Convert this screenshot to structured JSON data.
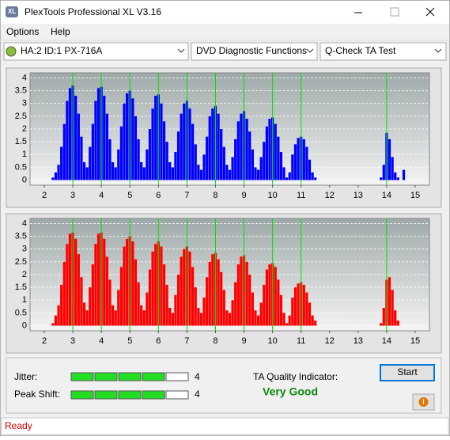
{
  "window": {
    "title": "PlexTools Professional XL V3.16"
  },
  "menu": [
    "Options",
    "Help"
  ],
  "toolbar": {
    "drive": "HA:2 ID:1  PX-716A",
    "function": "DVD Diagnostic Functions",
    "test": "Q-Check TA Test"
  },
  "chart_data": [
    {
      "type": "bar",
      "color": "#0000ff",
      "marker_color": "#00e000",
      "grid": true,
      "xlim": [
        1.5,
        15.5
      ],
      "ylim": [
        -0.2,
        4.2
      ],
      "xticks": [
        2,
        3,
        4,
        5,
        6,
        7,
        8,
        9,
        10,
        11,
        12,
        13,
        14,
        15
      ],
      "yticks": [
        0,
        0.5,
        1,
        1.5,
        2,
        2.5,
        3,
        3.5,
        4
      ],
      "markers": [
        3,
        4,
        5,
        6,
        7,
        8,
        9,
        10,
        11,
        14
      ],
      "x": [
        2.3,
        2.4,
        2.5,
        2.6,
        2.7,
        2.8,
        2.9,
        3.0,
        3.1,
        3.2,
        3.3,
        3.4,
        3.5,
        3.6,
        3.7,
        3.8,
        3.9,
        4.0,
        4.1,
        4.2,
        4.3,
        4.4,
        4.5,
        4.6,
        4.7,
        4.8,
        4.9,
        5.0,
        5.1,
        5.2,
        5.3,
        5.4,
        5.5,
        5.6,
        5.7,
        5.8,
        5.9,
        6.0,
        6.1,
        6.2,
        6.3,
        6.4,
        6.5,
        6.6,
        6.7,
        6.8,
        6.9,
        7.0,
        7.1,
        7.2,
        7.3,
        7.4,
        7.5,
        7.6,
        7.7,
        7.8,
        7.9,
        8.0,
        8.1,
        8.2,
        8.3,
        8.4,
        8.5,
        8.6,
        8.7,
        8.8,
        8.9,
        9.0,
        9.1,
        9.2,
        9.3,
        9.4,
        9.5,
        9.6,
        9.7,
        9.8,
        9.9,
        10.0,
        10.1,
        10.2,
        10.3,
        10.4,
        10.5,
        10.6,
        10.7,
        10.8,
        10.9,
        11.0,
        11.1,
        11.2,
        11.3,
        11.4,
        11.5,
        13.8,
        13.9,
        14.0,
        14.1,
        14.2,
        14.3,
        14.4,
        14.5,
        14.6
      ],
      "values": [
        0.1,
        0.3,
        0.6,
        1.3,
        2.2,
        3.1,
        3.6,
        3.7,
        3.3,
        2.6,
        1.7,
        0.7,
        0.5,
        1.3,
        2.2,
        3.1,
        3.6,
        3.65,
        3.3,
        2.6,
        1.6,
        0.7,
        0.5,
        1.2,
        2.1,
        3.0,
        3.4,
        3.5,
        3.2,
        2.5,
        1.6,
        0.7,
        0.5,
        1.2,
        2.0,
        2.8,
        3.3,
        3.35,
        3.0,
        2.3,
        1.5,
        0.7,
        0.5,
        1.1,
        1.9,
        2.6,
        3.0,
        3.1,
        2.8,
        2.2,
        1.4,
        0.6,
        0.4,
        1.0,
        1.7,
        2.5,
        2.8,
        2.9,
        2.6,
        2.0,
        1.3,
        0.6,
        0.4,
        0.9,
        1.6,
        2.3,
        2.6,
        2.7,
        2.4,
        1.9,
        1.2,
        0.5,
        0.4,
        0.9,
        1.5,
        2.1,
        2.4,
        2.45,
        2.2,
        1.7,
        1.1,
        0.5,
        0.1,
        0.3,
        1.0,
        1.4,
        1.65,
        1.7,
        1.6,
        1.3,
        0.8,
        0.3,
        0.1,
        0.1,
        0.6,
        1.85,
        1.6,
        0.9,
        0.3,
        0.1,
        0,
        0.4
      ]
    },
    {
      "type": "bar",
      "color": "#ff0000",
      "marker_color": "#00e000",
      "grid": true,
      "xlim": [
        1.5,
        15.5
      ],
      "ylim": [
        -0.2,
        4.2
      ],
      "xticks": [
        2,
        3,
        4,
        5,
        6,
        7,
        8,
        9,
        10,
        11,
        12,
        13,
        14,
        15
      ],
      "yticks": [
        0,
        0.5,
        1,
        1.5,
        2,
        2.5,
        3,
        3.5,
        4
      ],
      "markers": [
        3,
        4,
        5,
        6,
        7,
        8,
        9,
        10,
        11,
        14
      ],
      "x": [
        2.3,
        2.4,
        2.5,
        2.6,
        2.7,
        2.8,
        2.9,
        3.0,
        3.1,
        3.2,
        3.3,
        3.4,
        3.5,
        3.6,
        3.7,
        3.8,
        3.9,
        4.0,
        4.1,
        4.2,
        4.3,
        4.4,
        4.5,
        4.6,
        4.7,
        4.8,
        4.9,
        5.0,
        5.1,
        5.2,
        5.3,
        5.4,
        5.5,
        5.6,
        5.7,
        5.8,
        5.9,
        6.0,
        6.1,
        6.2,
        6.3,
        6.4,
        6.5,
        6.6,
        6.7,
        6.8,
        6.9,
        7.0,
        7.1,
        7.2,
        7.3,
        7.4,
        7.5,
        7.6,
        7.7,
        7.8,
        7.9,
        8.0,
        8.1,
        8.2,
        8.3,
        8.4,
        8.5,
        8.6,
        8.7,
        8.8,
        8.9,
        9.0,
        9.1,
        9.2,
        9.3,
        9.4,
        9.5,
        9.6,
        9.7,
        9.8,
        9.9,
        10.0,
        10.1,
        10.2,
        10.3,
        10.4,
        10.5,
        10.6,
        10.7,
        10.8,
        10.9,
        11.0,
        11.1,
        11.2,
        11.3,
        11.4,
        11.5,
        13.8,
        13.9,
        14.0,
        14.1,
        14.2,
        14.3,
        14.4,
        14.5,
        14.6
      ],
      "values": [
        0.1,
        0.4,
        0.8,
        1.6,
        2.5,
        3.2,
        3.6,
        3.65,
        3.4,
        2.8,
        1.9,
        0.9,
        0.6,
        1.5,
        2.4,
        3.2,
        3.6,
        3.65,
        3.4,
        2.7,
        1.8,
        0.8,
        0.6,
        1.4,
        2.3,
        3.1,
        3.4,
        3.5,
        3.3,
        2.6,
        1.7,
        0.8,
        0.6,
        1.3,
        2.2,
        2.9,
        3.2,
        3.3,
        3.1,
        2.4,
        1.6,
        0.7,
        0.5,
        1.2,
        2.0,
        2.7,
        3.0,
        3.1,
        2.9,
        2.3,
        1.5,
        0.7,
        0.5,
        1.1,
        1.9,
        2.5,
        2.8,
        2.85,
        2.6,
        2.1,
        1.4,
        0.6,
        0.5,
        1.0,
        1.7,
        2.4,
        2.7,
        2.75,
        2.5,
        2.0,
        1.3,
        0.6,
        0.4,
        0.9,
        1.6,
        2.2,
        2.4,
        2.45,
        2.3,
        1.8,
        1.2,
        0.5,
        0.1,
        0.4,
        1.1,
        1.5,
        1.65,
        1.7,
        1.6,
        1.3,
        0.9,
        0.4,
        0.2,
        0.1,
        0.7,
        1.8,
        1.9,
        1.4,
        0.6,
        0.2,
        0,
        0
      ]
    }
  ],
  "results": {
    "jitter": {
      "label": "Jitter:",
      "value": 4
    },
    "peak_shift": {
      "label": "Peak Shift:",
      "value": 4
    },
    "segments": 5,
    "quality_label": "TA Quality Indicator:",
    "quality": "Very Good"
  },
  "buttons": {
    "start": "Start"
  },
  "status": "Ready"
}
